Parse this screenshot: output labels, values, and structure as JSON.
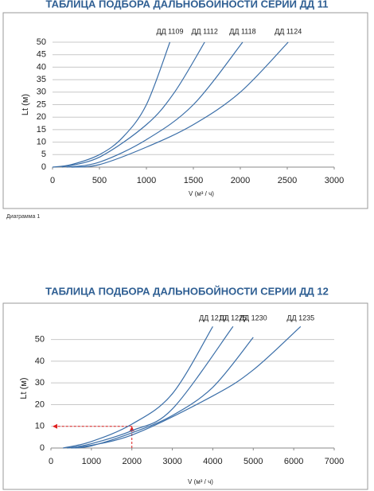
{
  "chart_data": [
    {
      "type": "line",
      "title": "ТАБЛИЦА ПОДБОРА ДАЛЬНОБОЙНОСТИ СЕРИИ ДД 11",
      "x_label": "V (м³ / ч)",
      "y_label": "Lt (м)",
      "xlim": [
        0,
        3000
      ],
      "xticks": [
        0,
        500,
        1000,
        1500,
        2000,
        2500,
        3000
      ],
      "ylim": [
        0,
        50
      ],
      "yticks": [
        0,
        5,
        10,
        15,
        20,
        25,
        30,
        35,
        40,
        45,
        50
      ],
      "grid": true,
      "series": [
        {
          "name": "ДД 1109",
          "color": "#3a6ea8",
          "x": [
            0,
            200,
            500,
            750,
            1000,
            1250
          ],
          "values": [
            0,
            1,
            5,
            12,
            25,
            50
          ]
        },
        {
          "name": "ДД 1112",
          "color": "#3a6ea8",
          "x": [
            100,
            500,
            1000,
            1300,
            1620
          ],
          "values": [
            0,
            4,
            17,
            30,
            50
          ]
        },
        {
          "name": "ДД 1118",
          "color": "#3a6ea8",
          "x": [
            150,
            500,
            1000,
            1500,
            2025
          ],
          "values": [
            0,
            2,
            11,
            25,
            50
          ]
        },
        {
          "name": "ДД 1124",
          "color": "#3a6ea8",
          "x": [
            200,
            500,
            1000,
            1500,
            2000,
            2510
          ],
          "values": [
            0,
            1,
            8,
            17,
            30,
            50
          ]
        }
      ]
    },
    {
      "type": "line",
      "title": "ТАБЛИЦА ПОДБОРА ДАЛЬНОБОЙНОСТИ СЕРИИ ДД 12",
      "x_label": "V (м³ / ч)",
      "y_label": "Lt (м)",
      "xlim": [
        0,
        7000
      ],
      "xticks": [
        0,
        1000,
        2000,
        3000,
        4000,
        5000,
        6000,
        7000
      ],
      "ylim": [
        0,
        55
      ],
      "yticks": [
        0,
        10,
        20,
        30,
        40,
        50
      ],
      "grid": true,
      "guide": {
        "x": 2000,
        "y": 10,
        "color": "#e02020"
      },
      "series": [
        {
          "name": "ДД 1210",
          "color": "#3a6ea8",
          "x": [
            300,
            1000,
            2000,
            3000,
            4000
          ],
          "values": [
            0,
            3,
            11,
            25,
            56
          ]
        },
        {
          "name": "ДД 1225",
          "color": "#3a6ea8",
          "x": [
            400,
            1000,
            2000,
            3000,
            4500
          ],
          "values": [
            0,
            2,
            8,
            18,
            56
          ]
        },
        {
          "name": "ДД 1230",
          "color": "#3a6ea8",
          "x": [
            500,
            1000,
            2000,
            3000,
            4000,
            5000
          ],
          "values": [
            0,
            1,
            7,
            15,
            28,
            51
          ]
        },
        {
          "name": "ДД 1235",
          "color": "#3a6ea8",
          "x": [
            600,
            2000,
            4000,
            5000,
            6170
          ],
          "values": [
            0,
            6,
            24,
            36,
            56
          ]
        }
      ]
    }
  ],
  "caption": "Диаграмма 1"
}
